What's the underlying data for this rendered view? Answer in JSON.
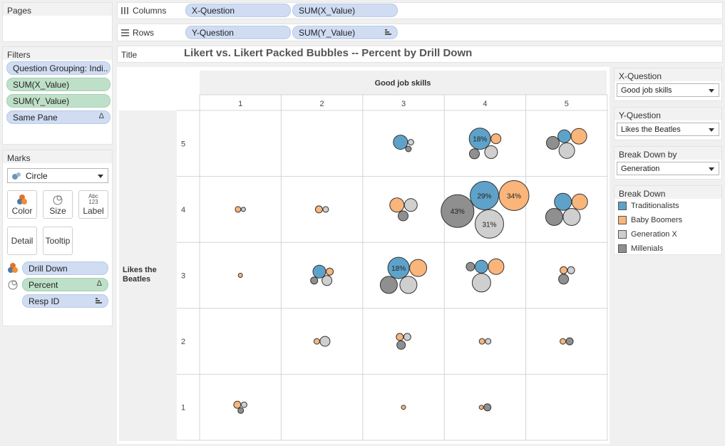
{
  "pages": {
    "title": "Pages"
  },
  "filters": {
    "title": "Filters",
    "items": [
      {
        "label": "Question Grouping: Indi..",
        "color": "blue",
        "tail": ""
      },
      {
        "label": "SUM(X_Value)",
        "color": "green",
        "tail": ""
      },
      {
        "label": "SUM(Y_Value)",
        "color": "green",
        "tail": ""
      },
      {
        "label": "Same Pane",
        "color": "blue",
        "tail": "Δ"
      }
    ]
  },
  "marks": {
    "title": "Marks",
    "type": "Circle",
    "buttons": {
      "color": "Color",
      "size": "Size",
      "label": "Label",
      "label_icon": "Abc 123",
      "detail": "Detail",
      "tooltip": "Tooltip"
    },
    "fields": [
      {
        "label": "Drill Down",
        "color": "blue",
        "icon": "color-icon",
        "tail": ""
      },
      {
        "label": "Percent",
        "color": "green",
        "icon": "size-icon",
        "tail": "Δ"
      },
      {
        "label": "Resp ID",
        "color": "blue",
        "icon": "",
        "tail": ""
      }
    ]
  },
  "shelves": {
    "columns_label": "Columns",
    "rows_label": "Rows",
    "title_label": "Title",
    "columns": [
      "X-Question",
      "SUM(X_Value)"
    ],
    "rows": [
      "Y-Question",
      "SUM(Y_Value)"
    ]
  },
  "title": "Likert vs. Likert Packed Bubbles -- Percent by Drill Down",
  "viz": {
    "col_header": "Good job skills",
    "row_header": "Likes the Beatles",
    "col_values": [
      "1",
      "2",
      "3",
      "4",
      "5"
    ],
    "row_values": [
      "5",
      "4",
      "3",
      "2",
      "1"
    ]
  },
  "controls": [
    {
      "title": "X-Question",
      "value": "Good job skills"
    },
    {
      "title": "Y-Question",
      "value": "Likes the Beatles"
    },
    {
      "title": "Break Down by",
      "value": "Generation"
    }
  ],
  "legend": {
    "title": "Break Down",
    "items": [
      {
        "label": "Traditionalists",
        "color": "#5fa2c9"
      },
      {
        "label": "Baby Boomers",
        "color": "#f9b57a"
      },
      {
        "label": "Generation X",
        "color": "#cfcfcf"
      },
      {
        "label": "Millenials",
        "color": "#8f8f8f"
      }
    ]
  },
  "chart_data": {
    "type": "scatter",
    "title": "Likert vs. Likert Packed Bubbles -- Percent by Drill Down",
    "xlabel": "Good job skills",
    "ylabel": "Likes the Beatles",
    "x_categories": [
      "1",
      "2",
      "3",
      "4",
      "5"
    ],
    "y_categories": [
      "5",
      "4",
      "3",
      "2",
      "1"
    ],
    "series_names": [
      "Traditionalists",
      "Baby Boomers",
      "Generation X",
      "Millenials"
    ],
    "cells": [
      {
        "x": "3",
        "y": "5",
        "bubbles": [
          {
            "group": "Traditionalists",
            "r": 10
          },
          {
            "group": "Generation X",
            "r": 4
          },
          {
            "group": "Millenials",
            "r": 4
          }
        ]
      },
      {
        "x": "4",
        "y": "5",
        "bubbles": [
          {
            "group": "Traditionalists",
            "r": 15,
            "label": "18%"
          },
          {
            "group": "Baby Boomers",
            "r": 7
          },
          {
            "group": "Generation X",
            "r": 9
          },
          {
            "group": "Millenials",
            "r": 7
          }
        ]
      },
      {
        "x": "5",
        "y": "5",
        "bubbles": [
          {
            "group": "Traditionalists",
            "r": 9
          },
          {
            "group": "Baby Boomers",
            "r": 11
          },
          {
            "group": "Generation X",
            "r": 11
          },
          {
            "group": "Millenials",
            "r": 9
          }
        ]
      },
      {
        "x": "1",
        "y": "4",
        "bubbles": [
          {
            "group": "Baby Boomers",
            "r": 4
          },
          {
            "group": "Generation X",
            "r": 3
          }
        ]
      },
      {
        "x": "2",
        "y": "4",
        "bubbles": [
          {
            "group": "Baby Boomers",
            "r": 5
          },
          {
            "group": "Generation X",
            "r": 4
          }
        ]
      },
      {
        "x": "3",
        "y": "4",
        "bubbles": [
          {
            "group": "Baby Boomers",
            "r": 10
          },
          {
            "group": "Generation X",
            "r": 9
          },
          {
            "group": "Millenials",
            "r": 7
          }
        ]
      },
      {
        "x": "4",
        "y": "4",
        "bubbles": [
          {
            "group": "Traditionalists",
            "r": 20,
            "label": "29%"
          },
          {
            "group": "Baby Boomers",
            "r": 21,
            "label": "34%"
          },
          {
            "group": "Generation X",
            "r": 20,
            "label": "31%"
          },
          {
            "group": "Millenials",
            "r": 23,
            "label": "43%"
          }
        ]
      },
      {
        "x": "5",
        "y": "4",
        "bubbles": [
          {
            "group": "Traditionalists",
            "r": 12
          },
          {
            "group": "Baby Boomers",
            "r": 11
          },
          {
            "group": "Generation X",
            "r": 12
          },
          {
            "group": "Millenials",
            "r": 12
          }
        ]
      },
      {
        "x": "1",
        "y": "3",
        "bubbles": [
          {
            "group": "Baby Boomers",
            "r": 3
          }
        ]
      },
      {
        "x": "2",
        "y": "3",
        "bubbles": [
          {
            "group": "Traditionalists",
            "r": 9
          },
          {
            "group": "Baby Boomers",
            "r": 5
          },
          {
            "group": "Generation X",
            "r": 7
          },
          {
            "group": "Millenials",
            "r": 5
          }
        ]
      },
      {
        "x": "3",
        "y": "3",
        "bubbles": [
          {
            "group": "Traditionalists",
            "r": 15,
            "label": "18%"
          },
          {
            "group": "Baby Boomers",
            "r": 12
          },
          {
            "group": "Generation X",
            "r": 12
          },
          {
            "group": "Millenials",
            "r": 12
          }
        ]
      },
      {
        "x": "4",
        "y": "3",
        "bubbles": [
          {
            "group": "Traditionalists",
            "r": 9
          },
          {
            "group": "Baby Boomers",
            "r": 11
          },
          {
            "group": "Generation X",
            "r": 13
          },
          {
            "group": "Millenials",
            "r": 6
          }
        ]
      },
      {
        "x": "5",
        "y": "3",
        "bubbles": [
          {
            "group": "Baby Boomers",
            "r": 5
          },
          {
            "group": "Generation X",
            "r": 5
          },
          {
            "group": "Millenials",
            "r": 7
          }
        ]
      },
      {
        "x": "2",
        "y": "2",
        "bubbles": [
          {
            "group": "Baby Boomers",
            "r": 4
          },
          {
            "group": "Generation X",
            "r": 7
          }
        ]
      },
      {
        "x": "3",
        "y": "2",
        "bubbles": [
          {
            "group": "Baby Boomers",
            "r": 5
          },
          {
            "group": "Generation X",
            "r": 5
          },
          {
            "group": "Millenials",
            "r": 6
          }
        ]
      },
      {
        "x": "4",
        "y": "2",
        "bubbles": [
          {
            "group": "Baby Boomers",
            "r": 4
          },
          {
            "group": "Generation X",
            "r": 4
          }
        ]
      },
      {
        "x": "5",
        "y": "2",
        "bubbles": [
          {
            "group": "Baby Boomers",
            "r": 4
          },
          {
            "group": "Millenials",
            "r": 5
          }
        ]
      },
      {
        "x": "1",
        "y": "1",
        "bubbles": [
          {
            "group": "Baby Boomers",
            "r": 5
          },
          {
            "group": "Generation X",
            "r": 4
          },
          {
            "group": "Millenials",
            "r": 4
          }
        ]
      },
      {
        "x": "3",
        "y": "1",
        "bubbles": [
          {
            "group": "Baby Boomers",
            "r": 3
          }
        ]
      },
      {
        "x": "4",
        "y": "1",
        "bubbles": [
          {
            "group": "Baby Boomers",
            "r": 3
          },
          {
            "group": "Millenials",
            "r": 5
          }
        ]
      }
    ]
  }
}
